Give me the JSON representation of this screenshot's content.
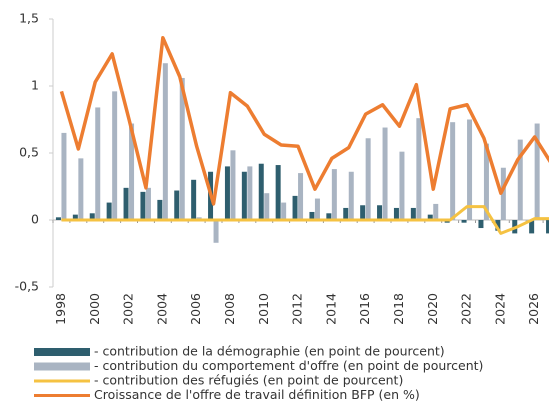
{
  "chart_data": {
    "type": "bar_line",
    "categories": [
      "1998",
      null,
      "2000",
      null,
      "2002",
      null,
      "2004",
      null,
      "2006",
      null,
      "2008",
      null,
      "2010",
      null,
      "2012",
      null,
      "2014",
      null,
      "2016",
      null,
      "2018",
      null,
      "2020",
      null,
      "2022",
      null,
      "2024",
      null,
      "2026",
      null
    ],
    "series": [
      {
        "name": "- contribution de la démographie (en point de pourcent)",
        "color": "#2e5e6e",
        "kind": "bar",
        "values": [
          0.02,
          0.04,
          0.05,
          0.13,
          0.24,
          0.21,
          0.15,
          0.22,
          0.3,
          0.36,
          0.4,
          0.36,
          0.42,
          0.41,
          0.18,
          0.06,
          0.05,
          0.09,
          0.11,
          0.11,
          0.09,
          0.09,
          0.04,
          -0.02,
          -0.02,
          -0.06,
          -0.08,
          -0.1,
          -0.1,
          -0.1
        ]
      },
      {
        "name": "- contribution du comportement d'offre (en point de pourcent)",
        "color": "#a9b4c2",
        "kind": "bar",
        "values": [
          0.65,
          0.46,
          0.84,
          0.96,
          0.72,
          0.24,
          1.17,
          1.06,
          0.02,
          -0.17,
          0.52,
          0.4,
          0.2,
          0.13,
          0.35,
          0.16,
          0.38,
          0.36,
          0.61,
          0.69,
          0.51,
          0.76,
          0.12,
          0.73,
          0.75,
          0.57,
          0.39,
          0.6,
          0.72,
          0.52
        ]
      },
      {
        "name": "- contribution des réfugiés (en point de pourcent)",
        "color": "#f5c242",
        "kind": "line",
        "values": [
          0,
          0,
          0,
          0,
          0,
          0,
          0,
          0,
          0,
          0,
          0,
          0,
          0,
          0,
          0,
          0,
          0,
          0,
          0,
          0,
          0,
          0,
          0,
          0,
          0.1,
          0.1,
          -0.1,
          -0.05,
          0.01,
          0.01
        ]
      },
      {
        "name": "Croissance de l'offre de travail définition BFP (en %)",
        "color": "#ed7d31",
        "kind": "line",
        "values": [
          0.96,
          0.53,
          1.03,
          1.24,
          0.75,
          0.24,
          1.36,
          1.07,
          0.55,
          0.12,
          0.95,
          0.85,
          0.64,
          0.56,
          0.55,
          0.23,
          0.46,
          0.54,
          0.79,
          0.86,
          0.7,
          1.01,
          0.23,
          0.83,
          0.86,
          0.61,
          0.2,
          0.45,
          0.62,
          0.42
        ]
      }
    ],
    "ylim": [
      -0.5,
      1.5
    ],
    "yticks": [
      {
        "value": -0.5,
        "label": "-0,5"
      },
      0,
      {
        "value": 0.5,
        "label": "0,5"
      },
      1,
      {
        "value": 1.5,
        "label": "1,5"
      }
    ]
  }
}
